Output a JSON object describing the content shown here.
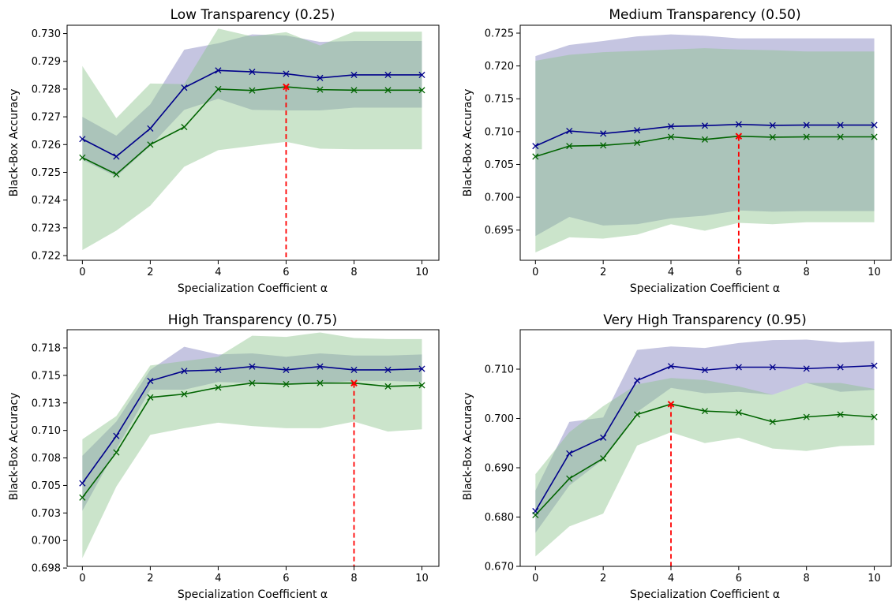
{
  "figure": {
    "x_values": [
      0,
      1,
      2,
      3,
      4,
      5,
      6,
      7,
      8,
      9,
      10
    ],
    "colors": {
      "series_a_line": "#00008b",
      "series_a_band": "#8c8cc4",
      "series_b_line": "#006400",
      "series_b_band": "#8cc48c",
      "highlight": "#ff0000"
    }
  },
  "chart_data": [
    {
      "type": "line",
      "title": "Low Transparency (0.25)",
      "xlabel": "Specialization Coefficient α",
      "ylabel": "Black-Box Accuracy",
      "xlim": [
        -0.45,
        10.5
      ],
      "ylim": [
        0.72183,
        0.7303
      ],
      "xticks": [
        0,
        2,
        4,
        6,
        8,
        10
      ],
      "xtick_labels": [
        "0",
        "2",
        "4",
        "6",
        "8",
        "10"
      ],
      "yticks": [
        0.722,
        0.723,
        0.724,
        0.725,
        0.726,
        0.727,
        0.728,
        0.729,
        0.73
      ],
      "ytick_labels": [
        "0.722",
        "0.723",
        "0.724",
        "0.725",
        "0.726",
        "0.727",
        "0.728",
        "0.729",
        "0.730"
      ],
      "series": [
        {
          "values": [
            0.7262,
            0.72557,
            0.72658,
            0.72805,
            0.72867,
            0.72862,
            0.72855,
            0.7284,
            0.72851,
            0.72851,
            0.72851
          ],
          "lower": [
            0.72545,
            0.72485,
            0.72595,
            0.72725,
            0.72765,
            0.72725,
            0.72723,
            0.72723,
            0.72733,
            0.72733,
            0.72733
          ],
          "upper": [
            0.727,
            0.72632,
            0.72745,
            0.72942,
            0.72965,
            0.72997,
            0.72993,
            0.7297,
            0.72973,
            0.72973,
            0.72973
          ]
        },
        {
          "values": [
            0.72553,
            0.72493,
            0.726,
            0.72663,
            0.728,
            0.72795,
            0.72808,
            0.72798,
            0.72796,
            0.72796,
            0.72796
          ],
          "lower": [
            0.7222,
            0.7229,
            0.7238,
            0.7252,
            0.7258,
            0.72595,
            0.7261,
            0.72585,
            0.72583,
            0.72583,
            0.72583
          ],
          "upper": [
            0.72883,
            0.72695,
            0.7282,
            0.72818,
            0.73018,
            0.7299,
            0.73005,
            0.72957,
            0.73007,
            0.73007,
            0.73007
          ]
        }
      ],
      "best_x": 6,
      "best_y": 0.72808
    },
    {
      "type": "line",
      "title": "Medium Transparency (0.50)",
      "xlabel": "Specialization Coefficient α",
      "ylabel": "Black-Box Accuracy",
      "xlim": [
        -0.45,
        10.5
      ],
      "ylim": [
        0.6904,
        0.7262
      ],
      "xticks": [
        0,
        2,
        4,
        6,
        8,
        10
      ],
      "xtick_labels": [
        "0",
        "2",
        "4",
        "6",
        "8",
        "10"
      ],
      "yticks": [
        0.695,
        0.7,
        0.705,
        0.71,
        0.715,
        0.72,
        0.725
      ],
      "ytick_labels": [
        "0.695",
        "0.700",
        "0.705",
        "0.710",
        "0.715",
        "0.720",
        "0.725"
      ],
      "series": [
        {
          "values": [
            0.7078,
            0.7101,
            0.7097,
            0.7102,
            0.7108,
            0.7109,
            0.7111,
            0.71095,
            0.711,
            0.711,
            0.711
          ],
          "lower": [
            0.6941,
            0.697,
            0.6957,
            0.6959,
            0.6968,
            0.6972,
            0.698,
            0.6978,
            0.6979,
            0.6979,
            0.6979
          ],
          "upper": [
            0.7215,
            0.7232,
            0.7238,
            0.7245,
            0.7248,
            0.7246,
            0.7242,
            0.7242,
            0.7242,
            0.7242,
            0.7242
          ]
        },
        {
          "values": [
            0.7062,
            0.7078,
            0.7079,
            0.7083,
            0.7092,
            0.7088,
            0.7093,
            0.70915,
            0.7092,
            0.7092,
            0.7092
          ],
          "lower": [
            0.6916,
            0.6939,
            0.6937,
            0.6943,
            0.6959,
            0.6949,
            0.6961,
            0.6959,
            0.6962,
            0.6962,
            0.6962
          ],
          "upper": [
            0.7208,
            0.7217,
            0.7221,
            0.7223,
            0.7225,
            0.7227,
            0.7225,
            0.7224,
            0.7222,
            0.7222,
            0.7222
          ]
        }
      ],
      "best_x": 6,
      "best_y": 0.7093
    },
    {
      "type": "line",
      "title": "High Transparency (0.75)",
      "xlabel": "Specialization Coefficient α",
      "ylabel": "Black-Box Accuracy",
      "xlim": [
        -0.45,
        10.5
      ],
      "ylim": [
        0.69765,
        0.71915
      ],
      "xticks": [
        0,
        2,
        4,
        6,
        8,
        10
      ],
      "xtick_labels": [
        "0",
        "2",
        "4",
        "6",
        "8",
        "10"
      ],
      "yticks": [
        0.6975,
        0.7,
        0.7025,
        0.705,
        0.7075,
        0.71,
        0.7125,
        0.715,
        0.7175
      ],
      "ytick_labels": [
        "0.698",
        "0.700",
        "0.703",
        "0.705",
        "0.708",
        "0.710",
        "0.713",
        "0.715",
        "0.718"
      ],
      "series": [
        {
          "values": [
            0.7052,
            0.7095,
            0.7145,
            0.7154,
            0.7155,
            0.7158,
            0.7155,
            0.7158,
            0.7155,
            0.7155,
            0.7156
          ],
          "lower": [
            0.7027,
            0.7083,
            0.7137,
            0.7137,
            0.7144,
            0.7143,
            0.7143,
            0.7143,
            0.7145,
            0.7145,
            0.7144
          ],
          "upper": [
            0.7077,
            0.7108,
            0.7155,
            0.7176,
            0.7169,
            0.717,
            0.7167,
            0.717,
            0.7168,
            0.7168,
            0.7169
          ]
        },
        {
          "values": [
            0.7039,
            0.708,
            0.713,
            0.7133,
            0.7139,
            0.7143,
            0.7142,
            0.7143,
            0.7143,
            0.714,
            0.7141
          ],
          "lower": [
            0.6984,
            0.7049,
            0.7096,
            0.7102,
            0.7107,
            0.7104,
            0.7102,
            0.7102,
            0.7108,
            0.7099,
            0.7101
          ],
          "upper": [
            0.7092,
            0.7113,
            0.7159,
            0.7163,
            0.7167,
            0.7186,
            0.7185,
            0.7189,
            0.7184,
            0.7183,
            0.7183
          ]
        }
      ],
      "best_x": 8,
      "best_y": 0.7143
    },
    {
      "type": "line",
      "title": "Very High Transparency (0.95)",
      "xlabel": "Specialization Coefficient α",
      "ylabel": "Black-Box Accuracy",
      "xlim": [
        -0.45,
        10.5
      ],
      "ylim": [
        0.67,
        0.718
      ],
      "xticks": [
        0,
        2,
        4,
        6,
        8,
        10
      ],
      "xtick_labels": [
        "0",
        "2",
        "4",
        "6",
        "8",
        "10"
      ],
      "yticks": [
        0.67,
        0.68,
        0.69,
        0.7,
        0.71
      ],
      "ytick_labels": [
        "0.670",
        "0.680",
        "0.690",
        "0.700",
        "0.710"
      ],
      "series": [
        {
          "values": [
            0.6812,
            0.6929,
            0.6961,
            0.7077,
            0.7106,
            0.7098,
            0.7104,
            0.7104,
            0.7101,
            0.7104,
            0.7107
          ],
          "lower": [
            0.6768,
            0.6864,
            0.6917,
            0.7013,
            0.7062,
            0.7051,
            0.7054,
            0.7048,
            0.7072,
            0.7054,
            0.7058
          ],
          "upper": [
            0.6854,
            0.6993,
            0.7002,
            0.7139,
            0.7146,
            0.7143,
            0.7153,
            0.7159,
            0.716,
            0.7154,
            0.7157
          ]
        },
        {
          "values": [
            0.6804,
            0.6878,
            0.6919,
            0.7008,
            0.7029,
            0.7015,
            0.7012,
            0.6993,
            0.7003,
            0.7008,
            0.7003
          ],
          "lower": [
            0.672,
            0.6781,
            0.6807,
            0.6945,
            0.6972,
            0.695,
            0.6961,
            0.6939,
            0.6934,
            0.6944,
            0.6946
          ],
          "upper": [
            0.6887,
            0.6972,
            0.7025,
            0.7069,
            0.7082,
            0.7078,
            0.7065,
            0.7048,
            0.7072,
            0.7072,
            0.706
          ]
        }
      ],
      "best_x": 4,
      "best_y": 0.7029
    }
  ]
}
